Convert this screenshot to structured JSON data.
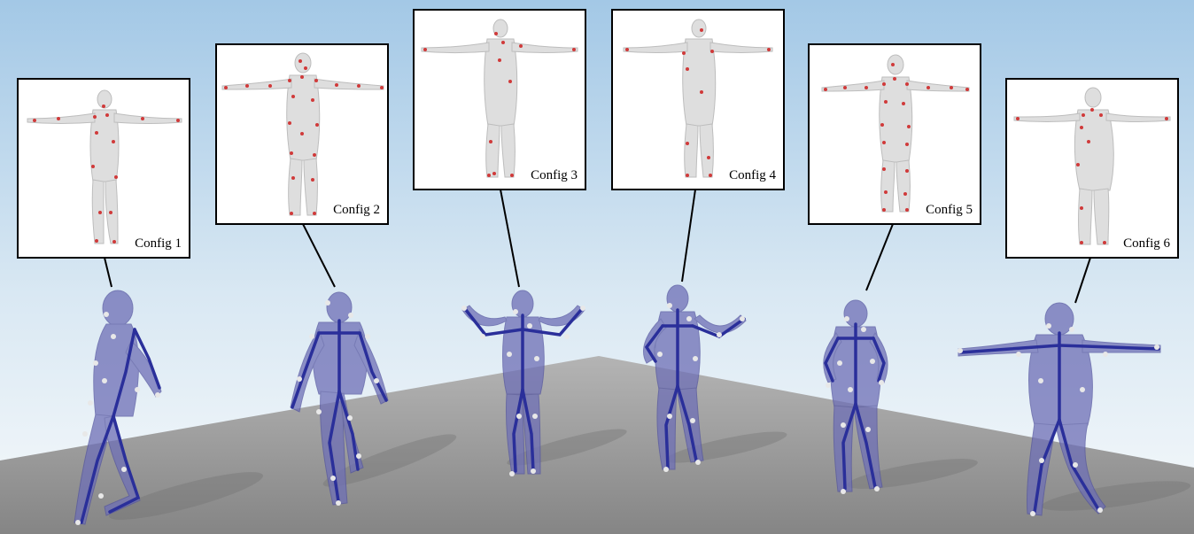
{
  "figure": {
    "configurations": [
      {
        "label": "Config 1"
      },
      {
        "label": "Config 2"
      },
      {
        "label": "Config 3"
      },
      {
        "label": "Config 4"
      },
      {
        "label": "Config 5"
      },
      {
        "label": "Config 6"
      }
    ],
    "colors": {
      "sky_top": "#a9cbe6",
      "sky_bottom": "#f4f8fb",
      "floor": "#8c8c8c",
      "floor_far": "#a8a8a8",
      "body_fill": "#6e6fb6",
      "skeleton": "#2a2f9a",
      "marker_red": "#d03a3a",
      "marker_white": "#e8e8e8",
      "mesh_gray": "#dedede"
    }
  }
}
